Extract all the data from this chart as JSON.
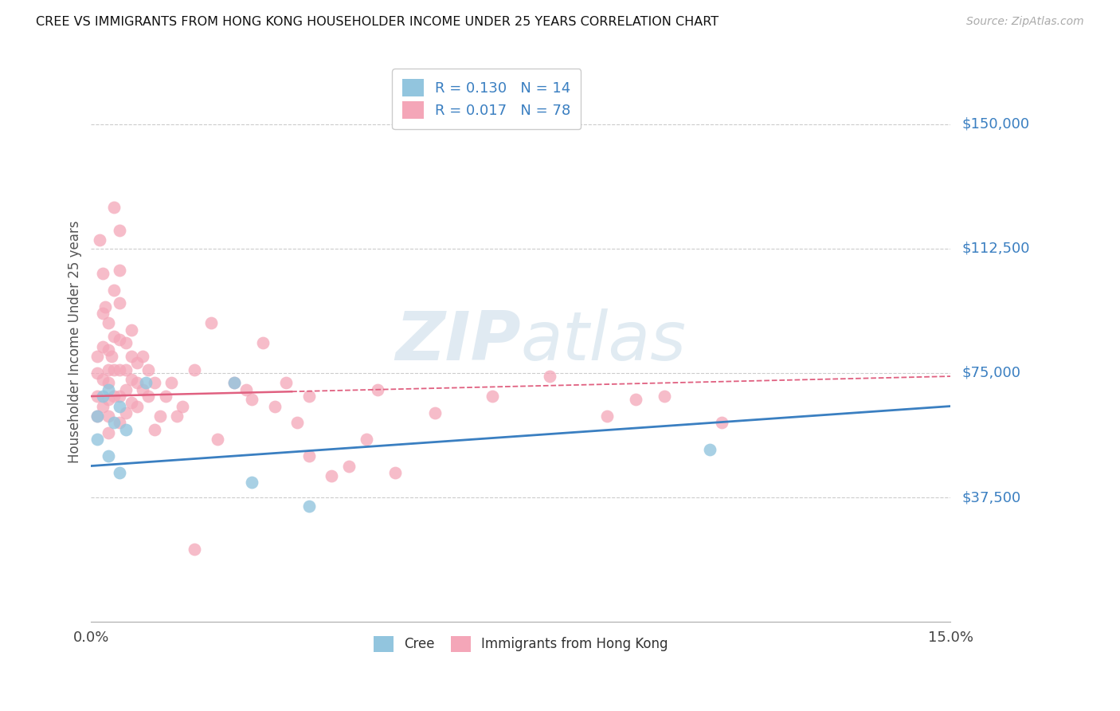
{
  "title": "CREE VS IMMIGRANTS FROM HONG KONG HOUSEHOLDER INCOME UNDER 25 YEARS CORRELATION CHART",
  "source": "Source: ZipAtlas.com",
  "ylabel": "Householder Income Under 25 years",
  "ytick_values": [
    37500,
    75000,
    112500,
    150000
  ],
  "ytick_labels": [
    "$37,500",
    "$75,000",
    "$112,500",
    "$150,000"
  ],
  "xlim": [
    0.0,
    0.15
  ],
  "ylim": [
    0,
    168750
  ],
  "watermark": "ZIPatlas",
  "blue_color": "#92c5de",
  "pink_color": "#f4a6b8",
  "line_blue_color": "#3a7fc1",
  "line_pink_color": "#e06080",
  "blue_line_x0": 0.0,
  "blue_line_y0": 47000,
  "blue_line_x1": 0.15,
  "blue_line_y1": 65000,
  "pink_line_x0": 0.0,
  "pink_line_y0": 68000,
  "pink_line_x1": 0.15,
  "pink_line_y1": 74000,
  "blue_scatter_x": [
    0.001,
    0.001,
    0.002,
    0.003,
    0.003,
    0.004,
    0.005,
    0.005,
    0.006,
    0.0095,
    0.025,
    0.028,
    0.038,
    0.108
  ],
  "blue_scatter_y": [
    62000,
    55000,
    68000,
    70000,
    50000,
    60000,
    65000,
    45000,
    58000,
    72000,
    72000,
    42000,
    35000,
    52000
  ],
  "pink_scatter_x": [
    0.001,
    0.001,
    0.001,
    0.001,
    0.0015,
    0.002,
    0.002,
    0.002,
    0.002,
    0.002,
    0.0025,
    0.003,
    0.003,
    0.003,
    0.003,
    0.003,
    0.003,
    0.003,
    0.0035,
    0.004,
    0.004,
    0.004,
    0.004,
    0.004,
    0.005,
    0.005,
    0.005,
    0.005,
    0.005,
    0.005,
    0.005,
    0.006,
    0.006,
    0.006,
    0.006,
    0.007,
    0.007,
    0.007,
    0.007,
    0.008,
    0.008,
    0.008,
    0.009,
    0.009,
    0.01,
    0.01,
    0.011,
    0.011,
    0.012,
    0.013,
    0.014,
    0.015,
    0.016,
    0.018,
    0.018,
    0.021,
    0.022,
    0.025,
    0.027,
    0.028,
    0.03,
    0.032,
    0.034,
    0.036,
    0.038,
    0.038,
    0.042,
    0.045,
    0.048,
    0.05,
    0.053,
    0.06,
    0.07,
    0.08,
    0.09,
    0.095,
    0.1,
    0.11
  ],
  "pink_scatter_y": [
    75000,
    80000,
    68000,
    62000,
    115000,
    105000,
    93000,
    83000,
    73000,
    65000,
    95000,
    90000,
    82000,
    76000,
    72000,
    67000,
    62000,
    57000,
    80000,
    125000,
    100000,
    86000,
    76000,
    68000,
    118000,
    106000,
    96000,
    85000,
    76000,
    68000,
    60000,
    84000,
    76000,
    70000,
    63000,
    88000,
    80000,
    73000,
    66000,
    78000,
    72000,
    65000,
    80000,
    70000,
    76000,
    68000,
    72000,
    58000,
    62000,
    68000,
    72000,
    62000,
    65000,
    22000,
    76000,
    90000,
    55000,
    72000,
    70000,
    67000,
    84000,
    65000,
    72000,
    60000,
    68000,
    50000,
    44000,
    47000,
    55000,
    70000,
    45000,
    63000,
    68000,
    74000,
    62000,
    67000,
    68000,
    60000
  ]
}
